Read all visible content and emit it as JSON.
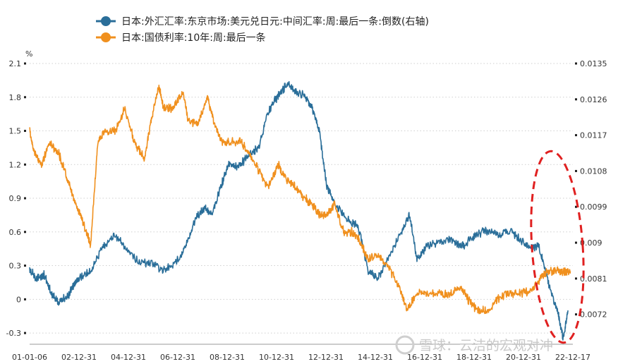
{
  "chart_data": {
    "type": "line",
    "x_tick_labels": [
      "01-01-06",
      "02-12-31",
      "04-12-31",
      "06-12-31",
      "08-12-31",
      "10-12-31",
      "12-12-31",
      "14-12-31",
      "16-12-31",
      "18-12-31",
      "20-12-31",
      "22-12-17"
    ],
    "x_start": 2001.0,
    "x_end": 2023.3,
    "left_axis": {
      "unit": "%",
      "range": [
        -0.4,
        2.1
      ],
      "ticks": [
        -0.3,
        0,
        0.3,
        0.6,
        0.9,
        1.2,
        1.5,
        1.8,
        2.1
      ]
    },
    "right_axis": {
      "range": [
        0.00645,
        0.0135
      ],
      "ticks": [
        0.0072,
        0.0081,
        0.009,
        0.0099,
        0.0108,
        0.0117,
        0.0126,
        0.0135
      ]
    },
    "grid": true,
    "legend_position": "top",
    "series": [
      {
        "name": "日本:外汇汇率:东京市场:美元兑日元:中间汇率:周:最后一条:倒数(右轴)",
        "axis": "right",
        "color": "#2a6e99",
        "x": [
          2001.0,
          2001.3,
          2001.6,
          2001.9,
          2002.2,
          2002.6,
          2002.8,
          2003.0,
          2003.5,
          2004.0,
          2004.5,
          2005.0,
          2005.5,
          2006.0,
          2006.5,
          2007.0,
          2007.4,
          2007.8,
          2008.2,
          2008.5,
          2008.9,
          2009.2,
          2009.6,
          2010.0,
          2010.4,
          2010.8,
          2011.2,
          2011.6,
          2011.9,
          2012.3,
          2012.6,
          2012.9,
          2013.2,
          2013.5,
          2014.0,
          2014.5,
          2014.9,
          2015.3,
          2015.8,
          2016.3,
          2016.6,
          2016.9,
          2017.3,
          2017.8,
          2018.3,
          2018.8,
          2019.3,
          2019.8,
          2020.3,
          2020.8,
          2021.1,
          2021.5,
          2021.9,
          2022.3,
          2022.7,
          2022.9,
          2023.1
        ],
        "y": [
          0.0083,
          0.0081,
          0.0082,
          0.0077,
          0.0075,
          0.0077,
          0.0079,
          0.0081,
          0.0083,
          0.0089,
          0.0092,
          0.0088,
          0.0085,
          0.0085,
          0.0083,
          0.0085,
          0.0089,
          0.0096,
          0.0099,
          0.0097,
          0.0105,
          0.011,
          0.0109,
          0.0112,
          0.0114,
          0.0123,
          0.0127,
          0.013,
          0.0128,
          0.0127,
          0.0124,
          0.0118,
          0.0104,
          0.01,
          0.0096,
          0.0094,
          0.0083,
          0.0081,
          0.0087,
          0.0093,
          0.0097,
          0.0086,
          0.0089,
          0.009,
          0.0091,
          0.0089,
          0.0092,
          0.0093,
          0.0092,
          0.0093,
          0.0091,
          0.0089,
          0.0089,
          0.008,
          0.0072,
          0.0066,
          0.0073
        ]
      },
      {
        "name": "日本:国债利率:10年:周:最后一条",
        "axis": "left",
        "color": "#f0901e",
        "x": [
          2001.0,
          2001.2,
          2001.5,
          2001.8,
          2002.2,
          2002.5,
          2002.8,
          2003.1,
          2003.4,
          2003.5,
          2003.8,
          2004.1,
          2004.5,
          2004.9,
          2005.3,
          2005.7,
          2006.0,
          2006.3,
          2006.5,
          2006.9,
          2007.3,
          2007.5,
          2007.9,
          2008.3,
          2008.6,
          2008.9,
          2009.2,
          2009.7,
          2010.0,
          2010.4,
          2010.8,
          2011.2,
          2011.6,
          2011.9,
          2012.3,
          2012.6,
          2012.9,
          2013.2,
          2013.5,
          2013.9,
          2014.3,
          2014.6,
          2014.9,
          2015.3,
          2015.7,
          2016.2,
          2016.5,
          2016.9,
          2017.3,
          2017.8,
          2018.2,
          2018.7,
          2019.0,
          2019.4,
          2019.8,
          2020.2,
          2020.7,
          2021.2,
          2021.7,
          2022.0,
          2022.3,
          2022.6,
          2022.9,
          2023.2
        ],
        "y": [
          1.5,
          1.3,
          1.2,
          1.4,
          1.3,
          1.1,
          0.9,
          0.75,
          0.55,
          0.48,
          1.4,
          1.5,
          1.5,
          1.7,
          1.4,
          1.25,
          1.6,
          1.9,
          1.7,
          1.7,
          1.85,
          1.6,
          1.55,
          1.8,
          1.55,
          1.4,
          1.4,
          1.4,
          1.3,
          1.15,
          1.0,
          1.2,
          1.05,
          1.0,
          0.9,
          0.85,
          0.75,
          0.75,
          0.85,
          0.6,
          0.6,
          0.5,
          0.35,
          0.4,
          0.3,
          0.1,
          -0.1,
          0.05,
          0.05,
          0.05,
          0.05,
          0.1,
          0.0,
          -0.1,
          -0.1,
          0.0,
          0.05,
          0.05,
          0.1,
          0.2,
          0.25,
          0.25,
          0.25,
          0.25
        ]
      }
    ]
  },
  "watermark": "雪球：云洁的宏观对冲"
}
